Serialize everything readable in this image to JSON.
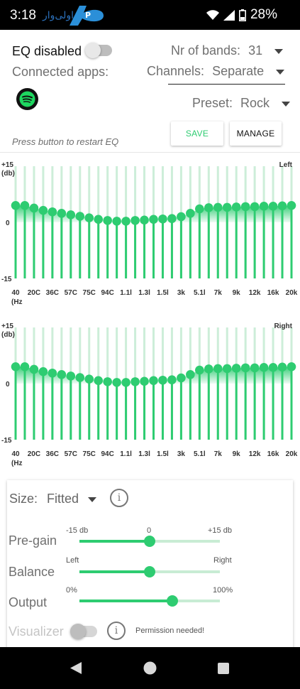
{
  "status_bar": {
    "time": "3:18",
    "battery": "28%"
  },
  "eq_toggle": {
    "label": "EQ disabled",
    "enabled": false
  },
  "bands": {
    "label": "Nr of bands:",
    "value": "31"
  },
  "connected_apps": {
    "label": "Connected apps:",
    "apps": [
      "spotify"
    ]
  },
  "channels": {
    "label": "Channels:",
    "value": "Separate"
  },
  "preset": {
    "label": "Preset:",
    "value": "Rock"
  },
  "buttons": {
    "save": "SAVE",
    "manage": "MANAGE"
  },
  "restart_hint": "Press button to restart EQ",
  "eq_axis": {
    "top": "+15",
    "unit": "(db)",
    "mid": "0",
    "bottom": "-15",
    "freq_unit": "(Hz"
  },
  "freq_labels": [
    "40",
    "20C",
    "36C",
    "57C",
    "75C",
    "94C",
    "1.1l",
    "1.3l",
    "1.5l",
    "3k",
    "5.1l",
    "7k",
    "9k",
    "12k",
    "16k",
    "20k"
  ],
  "chart_data": [
    {
      "type": "bar",
      "title": "Left",
      "ylabel": "(db)",
      "xlabel": "(Hz",
      "ylim": [
        -15,
        15
      ],
      "bands": 31,
      "values": [
        4.5,
        4.5,
        3.8,
        3.2,
        2.8,
        2.4,
        2.0,
        1.6,
        1.2,
        0.8,
        0.5,
        0.3,
        0.3,
        0.5,
        0.6,
        0.8,
        0.9,
        1.0,
        1.5,
        2.4,
        3.6,
        3.9,
        4.0,
        4.0,
        4.1,
        4.2,
        4.2,
        4.3,
        4.3,
        4.4,
        4.5
      ],
      "color": "#2ecc71"
    },
    {
      "type": "bar",
      "title": "Right",
      "ylabel": "(db)",
      "xlabel": "(Hz",
      "ylim": [
        -15,
        15
      ],
      "bands": 31,
      "values": [
        4.5,
        4.5,
        3.8,
        3.2,
        2.8,
        2.4,
        2.0,
        1.6,
        1.2,
        0.8,
        0.5,
        0.3,
        0.3,
        0.5,
        0.6,
        0.8,
        0.9,
        1.0,
        1.5,
        2.4,
        3.6,
        3.9,
        4.0,
        4.0,
        4.1,
        4.2,
        4.2,
        4.3,
        4.3,
        4.4,
        4.5
      ],
      "color": "#2ecc71"
    }
  ],
  "settings": {
    "size": {
      "label": "Size:",
      "value": "Fitted"
    },
    "pregain": {
      "label": "Pre-gain",
      "min": "-15 db",
      "mid": "0",
      "max": "+15 db",
      "value": 0.5
    },
    "balance": {
      "label": "Balance",
      "left": "Left",
      "right": "Right",
      "value": 0.5
    },
    "output": {
      "label": "Output",
      "min": "0%",
      "max": "100%",
      "value": 0.66
    },
    "visualizer": {
      "label": "Visualizer",
      "enabled": false,
      "note": "Permission needed!"
    }
  },
  "colors": {
    "accent": "#2ecc71",
    "accent_light": "#c8ecd4"
  }
}
